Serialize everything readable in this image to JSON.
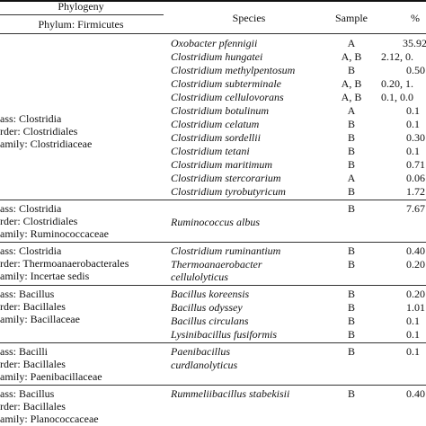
{
  "header": {
    "phylogeny": "Phylogeny",
    "phylum": "Phylum: Firmicutes",
    "species": "Species",
    "sample": "Sample",
    "percent": "%"
  },
  "groups": [
    {
      "phylo": [
        "ass: Clostridia",
        "rder: Clostridiales",
        "amily: Clostridiaceae"
      ],
      "rows": [
        {
          "species": "Oxobacter pfennigii",
          "sample": "A",
          "pct": "35.92"
        },
        {
          "species": "Clostridium hungatei",
          "sample": "A, B",
          "pct": "2.12, 0."
        },
        {
          "species": "Clostridium methylpentosum",
          "sample": "B",
          "pct": "0.50"
        },
        {
          "species": "Clostridium subterminale",
          "sample": "A, B",
          "pct": "0.20, 1."
        },
        {
          "species": "Clostridium cellulovorans",
          "sample": "A, B",
          "pct": "0.1, 0.0"
        },
        {
          "species": "Clostridium botulinum",
          "sample": "A",
          "pct": "0.1"
        },
        {
          "species": "Clostridium celatum",
          "sample": "B",
          "pct": "0.1"
        },
        {
          "species": "Clostridium sordellii",
          "sample": "B",
          "pct": "0.30"
        },
        {
          "species": "Clostridium tetani",
          "sample": "B",
          "pct": "0.1"
        },
        {
          "species": "Clostridium maritimum",
          "sample": "B",
          "pct": "0.71"
        },
        {
          "species": "Clostridium stercorarium",
          "sample": "A",
          "pct": "0.06"
        },
        {
          "species": "Clostridium tyrobutyricum",
          "sample": "B",
          "pct": "1.72"
        }
      ]
    },
    {
      "phylo": [
        "ass: Clostridia",
        "rder: Clostridiales",
        "amily: Ruminococcaceae"
      ],
      "rows": [
        {
          "species": "Ruminococcus albus",
          "sample": "B",
          "pct": "7.67"
        }
      ]
    },
    {
      "phylo": [
        "ass: Clostridia",
        "rder: Thermoanaerobacterales",
        "amily: Incertae sedis"
      ],
      "rows": [
        {
          "species": "Clostridium ruminantium",
          "sample": "B",
          "pct": "0.40"
        },
        {
          "species": "Thermoanaerobacter",
          "sample": "B",
          "pct": "0.20"
        },
        {
          "species": "cellulolyticus",
          "sample": "",
          "pct": ""
        }
      ]
    },
    {
      "phylo": [
        "ass: Bacillus",
        "rder: Bacillales",
        "amily: Bacillaceae"
      ],
      "rows": [
        {
          "species": "Bacillus koreensis",
          "sample": "B",
          "pct": "0.20"
        },
        {
          "species": "Bacillus odyssey",
          "sample": "B",
          "pct": "1.01"
        },
        {
          "species": "Bacillus circulans",
          "sample": "B",
          "pct": "0.1"
        },
        {
          "species": "Lysinibacillus fusiformis",
          "sample": "B",
          "pct": "0.1"
        }
      ]
    },
    {
      "phylo": [
        "ass: Bacilli",
        "rder: Bacillales",
        "amily: Paenibacillaceae"
      ],
      "rows": [
        {
          "species": "Paenibacillus",
          "sample": "B",
          "pct": "0.1"
        },
        {
          "species": "curdlanolyticus",
          "sample": "",
          "pct": ""
        }
      ]
    },
    {
      "phylo": [
        "ass: Bacillus",
        "rder: Bacillales",
        "amily: Planococcaceae"
      ],
      "rows": [
        {
          "species": "Rummeliibacillus stabekisii",
          "sample": "B",
          "pct": "0.40"
        }
      ]
    }
  ]
}
